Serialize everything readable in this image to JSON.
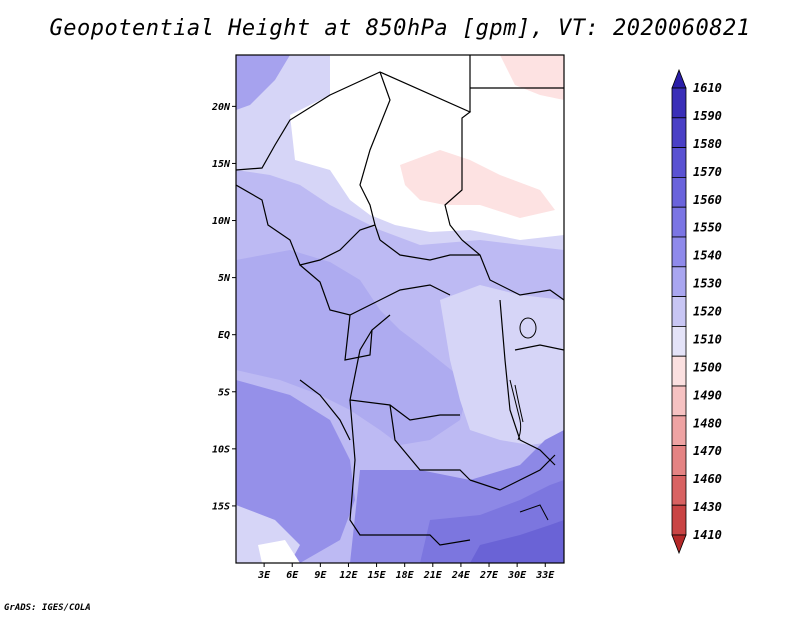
{
  "title": "Geopotential Height at 850hPa [gpm], VT: 2020060821",
  "footer": "GrADS: IGES/COLA",
  "map": {
    "variable": "Geopotential Height",
    "level": "850hPa",
    "units": "gpm",
    "valid_time": "2020060821",
    "lat_labels": [
      "20N",
      "15N",
      "10N",
      "5N",
      "EQ",
      "5S",
      "10S",
      "15S"
    ],
    "lat_values": [
      20,
      15,
      10,
      5,
      0,
      -5,
      -10,
      -15
    ],
    "lon_labels": [
      "3E",
      "6E",
      "9E",
      "12E",
      "15E",
      "18E",
      "21E",
      "24E",
      "27E",
      "30E",
      "33E"
    ],
    "lon_values": [
      3,
      6,
      9,
      12,
      15,
      18,
      21,
      24,
      27,
      30,
      33
    ]
  },
  "colorbar": {
    "labels": [
      "1610",
      "1590",
      "1580",
      "1570",
      "1560",
      "1550",
      "1540",
      "1530",
      "1520",
      "1510",
      "1500",
      "1490",
      "1480",
      "1470",
      "1460",
      "1430",
      "1410"
    ],
    "colors": [
      "#2a1ea8",
      "#3a2fb8",
      "#4a40c6",
      "#5a52d2",
      "#6a63dc",
      "#7b75e4",
      "#8f8aeb",
      "#a9a6f0",
      "#c8c6f4",
      "#e4e3f8",
      "#fbe0e0",
      "#f6c2c2",
      "#eea3a3",
      "#e48383",
      "#d86262",
      "#c94444",
      "#b42828"
    ]
  }
}
